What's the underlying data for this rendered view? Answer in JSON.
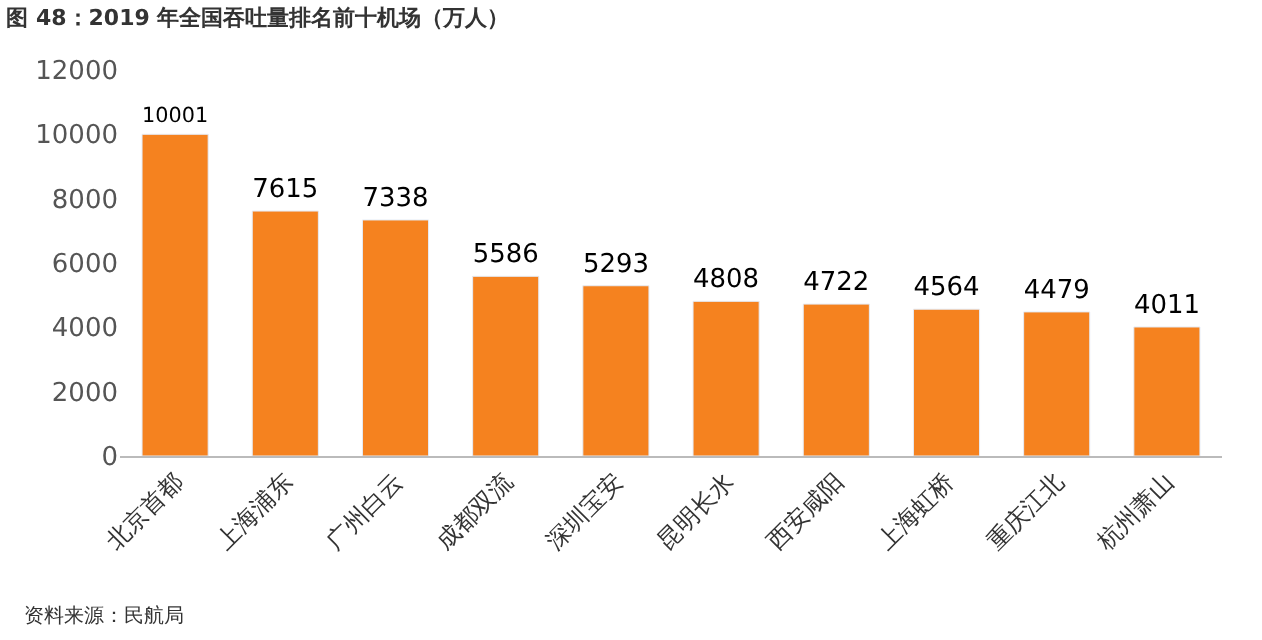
{
  "chart_data": {
    "type": "bar",
    "title": "图 48：2019 年全国吞吐量排名前十机场（万人）",
    "categories": [
      "北京首都",
      "上海浦东",
      "广州白云",
      "成都双流",
      "深圳宝安",
      "昆明长水",
      "西安咸阳",
      "上海虹桥",
      "重庆江北",
      "杭州萧山"
    ],
    "values": [
      10001,
      7615,
      7338,
      5586,
      5293,
      4808,
      4722,
      4564,
      4479,
      4011
    ],
    "color": "#f5821f",
    "ylim": [
      0,
      12000
    ],
    "yticks": [
      0,
      2000,
      4000,
      6000,
      8000,
      10000,
      12000
    ],
    "data_labels": true,
    "annotations": [
      "资料来源：民航局"
    ]
  }
}
